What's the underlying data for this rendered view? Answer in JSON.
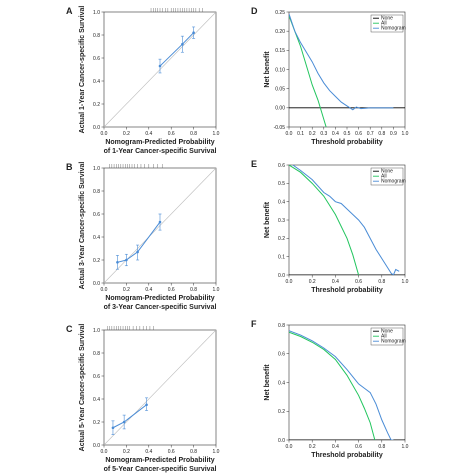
{
  "colors": {
    "none": "#000000",
    "all": "#22c55e",
    "nomogram": "#4a8cd6",
    "calib": "#4a8cd6",
    "ideal": "#bdbdbd"
  },
  "chart_data": [
    {
      "type": "line",
      "panel_label": "A",
      "xlabel_lines": [
        "Nomogram-Predicted Probability",
        "of 1-Year Cancer-specific Survival"
      ],
      "ylabel": "Actual 1-Year Cancer-specific Survival",
      "xlim": [
        0,
        1
      ],
      "ylim": [
        0,
        1
      ],
      "x_ticks": [
        "0.0",
        "0.2",
        "0.4",
        "0.6",
        "0.8",
        "1.0"
      ],
      "y_ticks": [
        "0.0",
        "0.2",
        "0.4",
        "0.6",
        "0.8",
        "1.0"
      ],
      "ideal_line": [
        [
          0,
          0
        ],
        [
          1,
          1
        ]
      ],
      "calibration": [
        {
          "x": 0.5,
          "y": 0.53,
          "lo": 0.47,
          "hi": 0.59
        },
        {
          "x": 0.7,
          "y": 0.72,
          "lo": 0.65,
          "hi": 0.79
        },
        {
          "x": 0.8,
          "y": 0.82,
          "lo": 0.77,
          "hi": 0.87
        }
      ],
      "rug_x": [
        0.42,
        0.44,
        0.46,
        0.48,
        0.5,
        0.52,
        0.55,
        0.57,
        0.6,
        0.62,
        0.64,
        0.66,
        0.68,
        0.7,
        0.72,
        0.74,
        0.76,
        0.78,
        0.8,
        0.82,
        0.85,
        0.88
      ]
    },
    {
      "type": "line",
      "panel_label": "D",
      "xlabel": "Threshold probability",
      "ylabel": "Net benefit",
      "xlim": [
        0,
        1
      ],
      "ylim": [
        -0.05,
        0.25
      ],
      "x_ticks": [
        "0.0",
        "0.1",
        "0.2",
        "0.3",
        "0.4",
        "0.5",
        "0.6",
        "0.7",
        "0.8",
        "0.9",
        "1.0"
      ],
      "y_ticks": [
        "-0.05",
        "0.00",
        "0.05",
        "0.10",
        "0.15",
        "0.20",
        "0.25"
      ],
      "legend": [
        "None",
        "All",
        "Nomogram"
      ],
      "series": [
        {
          "name": "None",
          "values": [
            [
              0,
              0
            ],
            [
              1,
              0
            ]
          ]
        },
        {
          "name": "All",
          "values": [
            [
              0,
              0.24
            ],
            [
              0.05,
              0.2
            ],
            [
              0.1,
              0.16
            ],
            [
              0.15,
              0.11
            ],
            [
              0.2,
              0.06
            ],
            [
              0.25,
              0.02
            ],
            [
              0.28,
              -0.01
            ],
            [
              0.32,
              -0.05
            ]
          ]
        },
        {
          "name": "Nomogram",
          "values": [
            [
              0,
              0.245
            ],
            [
              0.05,
              0.2
            ],
            [
              0.1,
              0.17
            ],
            [
              0.15,
              0.145
            ],
            [
              0.2,
              0.12
            ],
            [
              0.25,
              0.09
            ],
            [
              0.3,
              0.065
            ],
            [
              0.35,
              0.045
            ],
            [
              0.4,
              0.03
            ],
            [
              0.45,
              0.015
            ],
            [
              0.5,
              0.005
            ],
            [
              0.55,
              -0.005
            ],
            [
              0.58,
              0.002
            ],
            [
              0.62,
              -0.002
            ],
            [
              0.7,
              0
            ],
            [
              0.9,
              0
            ]
          ]
        }
      ]
    },
    {
      "type": "line",
      "panel_label": "B",
      "xlabel_lines": [
        "Nomogram-Predicted Probability",
        "of 3-Year Cancer-specific Survival"
      ],
      "ylabel": "Actual 3-Year Cancer-specific Survival",
      "xlim": [
        0,
        1
      ],
      "ylim": [
        0,
        1
      ],
      "x_ticks": [
        "0.0",
        "0.2",
        "0.4",
        "0.6",
        "0.8",
        "1.0"
      ],
      "y_ticks": [
        "0.0",
        "0.2",
        "0.4",
        "0.6",
        "0.8",
        "1.0"
      ],
      "ideal_line": [
        [
          0,
          0
        ],
        [
          1,
          1
        ]
      ],
      "calibration": [
        {
          "x": 0.12,
          "y": 0.18,
          "lo": 0.12,
          "hi": 0.24
        },
        {
          "x": 0.2,
          "y": 0.2,
          "lo": 0.15,
          "hi": 0.25
        },
        {
          "x": 0.3,
          "y": 0.27,
          "lo": 0.2,
          "hi": 0.33
        },
        {
          "x": 0.5,
          "y": 0.53,
          "lo": 0.46,
          "hi": 0.6
        }
      ],
      "rug_x": [
        0.05,
        0.07,
        0.09,
        0.11,
        0.13,
        0.15,
        0.17,
        0.19,
        0.21,
        0.23,
        0.25,
        0.27,
        0.3,
        0.33,
        0.36,
        0.4,
        0.44,
        0.48,
        0.52
      ]
    },
    {
      "type": "line",
      "panel_label": "E",
      "xlabel": "Threshold probability",
      "ylabel": "Net benefit",
      "xlim": [
        0,
        1
      ],
      "ylim": [
        0,
        0.6
      ],
      "x_ticks": [
        "0.0",
        "0.2",
        "0.4",
        "0.6",
        "0.8",
        "1.0"
      ],
      "y_ticks": [
        "0.0",
        "0.1",
        "0.2",
        "0.3",
        "0.4",
        "0.5",
        "0.6"
      ],
      "legend": [
        "None",
        "All",
        "Nomogram"
      ],
      "series": [
        {
          "name": "None",
          "values": [
            [
              0,
              0
            ],
            [
              1,
              0
            ]
          ]
        },
        {
          "name": "All",
          "values": [
            [
              0,
              0.6
            ],
            [
              0.1,
              0.56
            ],
            [
              0.2,
              0.5
            ],
            [
              0.3,
              0.43
            ],
            [
              0.4,
              0.33
            ],
            [
              0.5,
              0.2
            ],
            [
              0.55,
              0.11
            ],
            [
              0.6,
              0.0
            ]
          ]
        },
        {
          "name": "Nomogram",
          "values": [
            [
              0,
              0.615
            ],
            [
              0.1,
              0.57
            ],
            [
              0.2,
              0.52
            ],
            [
              0.3,
              0.45
            ],
            [
              0.35,
              0.43
            ],
            [
              0.4,
              0.4
            ],
            [
              0.45,
              0.39
            ],
            [
              0.5,
              0.36
            ],
            [
              0.55,
              0.33
            ],
            [
              0.6,
              0.3
            ],
            [
              0.65,
              0.26
            ],
            [
              0.7,
              0.2
            ],
            [
              0.75,
              0.14
            ],
            [
              0.8,
              0.09
            ],
            [
              0.85,
              0.04
            ],
            [
              0.88,
              0.01
            ],
            [
              0.9,
              0.0
            ],
            [
              0.92,
              0.03
            ],
            [
              0.95,
              0.02
            ]
          ]
        }
      ]
    },
    {
      "type": "line",
      "panel_label": "C",
      "xlabel_lines": [
        "Nomogram-Predicted Probability",
        "of 5-Year Cancer-specific Survival"
      ],
      "ylabel": "Actual 5-Year Cancer-specific Survival",
      "xlim": [
        0,
        1
      ],
      "ylim": [
        0,
        1
      ],
      "x_ticks": [
        "0.0",
        "0.2",
        "0.4",
        "0.6",
        "0.8",
        "1.0"
      ],
      "y_ticks": [
        "0.0",
        "0.2",
        "0.4",
        "0.6",
        "0.8",
        "1.0"
      ],
      "ideal_line": [
        [
          0,
          0
        ],
        [
          1,
          1
        ]
      ],
      "calibration": [
        {
          "x": 0.08,
          "y": 0.15,
          "lo": 0.09,
          "hi": 0.21
        },
        {
          "x": 0.18,
          "y": 0.2,
          "lo": 0.14,
          "hi": 0.26
        },
        {
          "x": 0.38,
          "y": 0.35,
          "lo": 0.3,
          "hi": 0.41
        }
      ],
      "rug_x": [
        0.03,
        0.05,
        0.07,
        0.09,
        0.11,
        0.13,
        0.15,
        0.17,
        0.19,
        0.21,
        0.23,
        0.26,
        0.29,
        0.32,
        0.35,
        0.38,
        0.41,
        0.44
      ]
    },
    {
      "type": "line",
      "panel_label": "F",
      "xlabel": "Threshold probability",
      "ylabel": "Net benefit",
      "xlim": [
        0,
        1
      ],
      "ylim": [
        0,
        0.8
      ],
      "x_ticks": [
        "0.0",
        "0.2",
        "0.4",
        "0.6",
        "0.8",
        "1.0"
      ],
      "y_ticks": [
        "0.0",
        "0.2",
        "0.4",
        "0.6",
        "0.8"
      ],
      "legend": [
        "None",
        "All",
        "Nomogram"
      ],
      "series": [
        {
          "name": "None",
          "values": [
            [
              0,
              0
            ],
            [
              1,
              0
            ]
          ]
        },
        {
          "name": "All",
          "values": [
            [
              0,
              0.75
            ],
            [
              0.1,
              0.72
            ],
            [
              0.2,
              0.68
            ],
            [
              0.3,
              0.63
            ],
            [
              0.4,
              0.56
            ],
            [
              0.5,
              0.45
            ],
            [
              0.6,
              0.31
            ],
            [
              0.65,
              0.22
            ],
            [
              0.7,
              0.12
            ],
            [
              0.74,
              0.0
            ]
          ]
        },
        {
          "name": "Nomogram",
          "values": [
            [
              0,
              0.76
            ],
            [
              0.1,
              0.73
            ],
            [
              0.2,
              0.69
            ],
            [
              0.3,
              0.64
            ],
            [
              0.4,
              0.58
            ],
            [
              0.5,
              0.49
            ],
            [
              0.6,
              0.39
            ],
            [
              0.65,
              0.36
            ],
            [
              0.7,
              0.33
            ],
            [
              0.75,
              0.25
            ],
            [
              0.8,
              0.14
            ],
            [
              0.85,
              0.05
            ],
            [
              0.88,
              0.0
            ],
            [
              0.9,
              0.0
            ]
          ]
        }
      ]
    }
  ]
}
